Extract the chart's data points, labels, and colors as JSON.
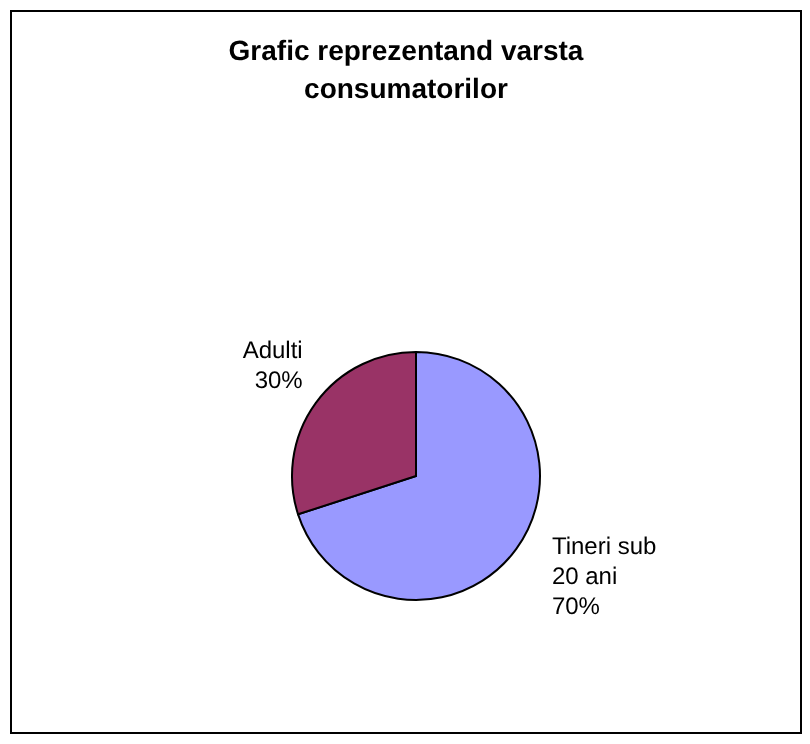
{
  "chart_data": {
    "type": "pie",
    "title": "Grafic reprezentand varsta consumatorilor",
    "categories": [
      "Tineri sub 20 ani",
      "Adulti"
    ],
    "values": [
      70,
      30
    ],
    "value_labels": [
      "70%",
      "30%"
    ],
    "colors": [
      "#9999ff",
      "#993366"
    ],
    "legend": false
  }
}
